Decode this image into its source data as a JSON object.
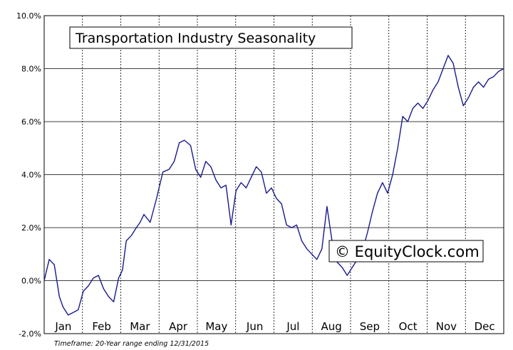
{
  "chart_data": {
    "type": "line",
    "title": "Transportation Industry Seasonality",
    "watermark": "© EquityClock.com",
    "footnote": "Timeframe: 20-Year range ending 12/31/2015",
    "xlabel": "",
    "ylabel": "",
    "ylim": [
      -2.0,
      10.0
    ],
    "y_ticks": [
      -2.0,
      0.0,
      2.0,
      4.0,
      6.0,
      8.0,
      10.0
    ],
    "y_tick_labels": [
      "-2.0%",
      "0.0%",
      "2.0%",
      "4.0%",
      "6.0%",
      "8.0%",
      "10.0%"
    ],
    "x_months": [
      "Jan",
      "Feb",
      "Mar",
      "Apr",
      "May",
      "Jun",
      "Jul",
      "Aug",
      "Sep",
      "Oct",
      "Nov",
      "Dec"
    ],
    "grid": true,
    "line_color": "#1a1a8c",
    "series": [
      {
        "x_day": [
          1,
          5,
          9,
          13,
          16,
          20,
          24,
          28,
          32,
          36,
          40,
          44,
          48,
          52,
          56,
          60,
          63,
          66,
          70,
          74,
          77,
          80,
          85,
          90,
          95,
          100,
          104,
          108,
          112,
          117,
          121,
          125,
          129,
          133,
          137,
          141,
          145,
          149,
          153,
          157,
          161,
          165,
          169,
          173,
          177,
          181,
          185,
          189,
          193,
          197,
          201,
          205,
          209,
          213,
          217,
          221,
          225,
          229,
          233,
          237,
          241,
          245,
          249,
          253,
          257,
          261,
          265,
          269,
          273,
          277,
          281,
          285,
          289,
          293,
          297,
          301,
          305,
          309,
          313,
          317,
          321,
          325,
          329,
          333,
          337,
          341,
          345,
          349,
          353,
          357,
          361,
          365
        ],
        "y": [
          0.0,
          0.8,
          0.6,
          -0.6,
          -1.0,
          -1.3,
          -1.2,
          -1.1,
          -0.4,
          -0.2,
          0.1,
          0.2,
          -0.3,
          -0.6,
          -0.8,
          0.1,
          0.4,
          1.5,
          1.7,
          2.0,
          2.2,
          2.5,
          2.2,
          3.1,
          4.1,
          4.2,
          4.5,
          5.2,
          5.3,
          5.1,
          4.2,
          3.9,
          4.5,
          4.3,
          3.8,
          3.5,
          3.6,
          2.1,
          3.4,
          3.7,
          3.5,
          3.9,
          4.3,
          4.1,
          3.3,
          3.5,
          3.1,
          2.9,
          2.1,
          2.0,
          2.1,
          1.5,
          1.2,
          1.0,
          0.8,
          1.2,
          2.8,
          1.5,
          0.7,
          0.5,
          0.2,
          0.5,
          0.8,
          1.1,
          1.8,
          2.6,
          3.3,
          3.7,
          3.3,
          4.0,
          5.0,
          6.2,
          6.0,
          6.5,
          6.7,
          6.5,
          6.8,
          7.2,
          7.5,
          8.0,
          8.5,
          8.2,
          7.3,
          6.6,
          6.9,
          7.3,
          7.5,
          7.3,
          7.6,
          7.7,
          7.9,
          8.0
        ]
      }
    ]
  }
}
